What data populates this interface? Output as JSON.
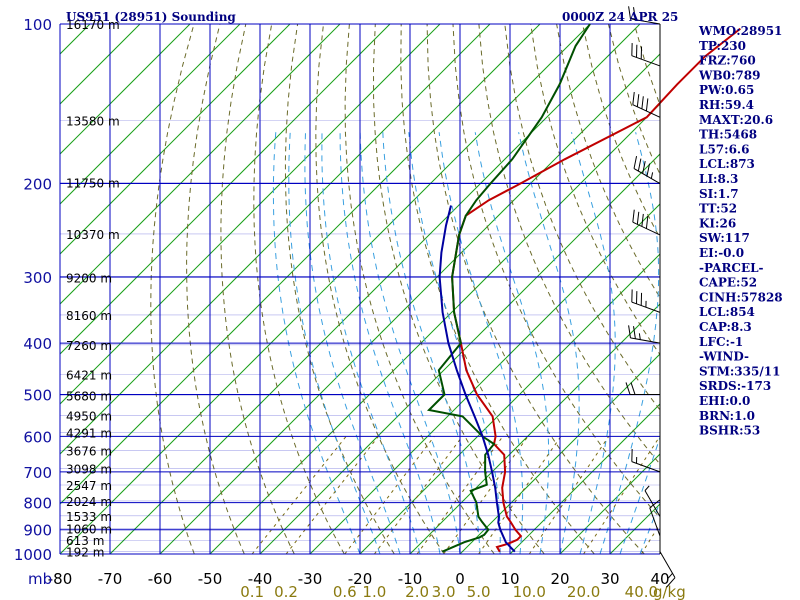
{
  "header": {
    "station": "US951 (28951) Sounding",
    "time": "0000Z 24 APR 25"
  },
  "indices": [
    "WMO:28951",
    "TP:230",
    "FRZ:760",
    "WB0:789",
    "PW:0.65",
    "RH:59.4",
    "MAXT:20.6",
    "TH:5468",
    "L57:6.6",
    "LCL:873",
    "LI:8.3",
    "SI:1.7",
    "TT:52",
    "KI:26",
    "SW:117",
    "EI:-0.0",
    "-PARCEL-",
    "CAPE:52",
    "CINH:57828",
    "LCL:854",
    "CAP:8.3",
    "LFC:-1",
    "-WIND-",
    "STM:335/11",
    "SRDS:-173",
    "EHI:0.0",
    "BRN:1.0",
    "BSHR:53"
  ],
  "chart_data": {
    "type": "line",
    "title": "US951 (28951) Sounding",
    "xlabel": "",
    "ylabel": "mb",
    "x_range": [
      -80,
      0
    ],
    "pressure_range": [
      100,
      1000
    ],
    "log_pressure": true,
    "skew_deg": 45,
    "grid": true,
    "pressure_ticks": [
      100,
      200,
      300,
      400,
      500,
      600,
      700,
      800,
      900,
      1000
    ],
    "pressure_tick_labels": [
      "100",
      "200",
      "300",
      "400",
      "500",
      "600",
      "700",
      "800",
      "900",
      "1000"
    ],
    "temp_ticks": [
      -80,
      -70,
      -60,
      -50,
      -40,
      -30,
      -20,
      -10,
      0,
      10,
      20,
      30,
      40
    ],
    "temp_tick_labels": [
      "-80",
      "-70",
      "-60",
      "-50",
      "-40",
      "-30",
      "-20",
      "-10",
      "0",
      "10",
      "20",
      "30",
      "40"
    ],
    "mixing_ratio_labels": [
      "0.1",
      "0.2",
      "0.6",
      "1.0",
      "2.0",
      "3.0",
      "5.0",
      "10.0",
      "20.0",
      "40.0",
      "g/kg"
    ],
    "mixing_ratio_values": [
      0.1,
      0.2,
      0.6,
      1.0,
      2.0,
      3.0,
      5.0,
      10.0,
      20.0,
      40.0
    ],
    "heights": [
      {
        "p": 990,
        "label": "192 m"
      },
      {
        "p": 942,
        "label": "613 m"
      },
      {
        "p": 895,
        "label": "1060 m"
      },
      {
        "p": 847,
        "label": "1533 m"
      },
      {
        "p": 794,
        "label": "2024 m"
      },
      {
        "p": 741,
        "label": "2547 m"
      },
      {
        "p": 690,
        "label": "3098 m"
      },
      {
        "p": 638,
        "label": "3676 m"
      },
      {
        "p": 590,
        "label": "4291 m"
      },
      {
        "p": 548,
        "label": "4950 m"
      },
      {
        "p": 502,
        "label": "5680 m"
      },
      {
        "p": 458,
        "label": "6421 m"
      },
      {
        "p": 403,
        "label": "7260 m"
      },
      {
        "p": 354,
        "label": "8160 m"
      },
      {
        "p": 301,
        "label": "9200 m"
      },
      {
        "p": 249,
        "label": "10370 m"
      },
      {
        "p": 199,
        "label": "11750 m"
      },
      {
        "p": 152,
        "label": "13580 m"
      },
      {
        "p": 100,
        "label": "16170 m"
      }
    ],
    "series": [
      {
        "name": "",
        "role": "temperature",
        "color": "#c00000",
        "points": [
          [
            990,
            7.5
          ],
          [
            970,
            6
          ],
          [
            960,
            7.2
          ],
          [
            950,
            8.0
          ],
          [
            940,
            8.6
          ],
          [
            925,
            8.6
          ],
          [
            900,
            6.2
          ],
          [
            870,
            3.7
          ],
          [
            850,
            1.9
          ],
          [
            800,
            -1.6
          ],
          [
            750,
            -4.8
          ],
          [
            700,
            -7.4
          ],
          [
            650,
            -11.0
          ],
          [
            620,
            -15.2
          ],
          [
            600,
            -16.4
          ],
          [
            550,
            -21.0
          ],
          [
            500,
            -28.5
          ],
          [
            450,
            -35.5
          ],
          [
            400,
            -42.0
          ],
          [
            350,
            -49.5
          ],
          [
            300,
            -57.0
          ],
          [
            250,
            -64.0
          ],
          [
            230,
            -66.5
          ],
          [
            215,
            -65.0
          ],
          [
            200,
            -62.0
          ],
          [
            180,
            -58.0
          ],
          [
            150,
            -50.0
          ],
          [
            130,
            -50.5
          ],
          [
            115,
            -50.5
          ],
          [
            102,
            -49.0
          ]
        ]
      },
      {
        "name": "",
        "role": "dewpoint",
        "color": "#005000",
        "points": [
          [
            990,
            -4.0
          ],
          [
            950,
            -1.5
          ],
          [
            930,
            0.6
          ],
          [
            920,
            1.0
          ],
          [
            900,
            0.8
          ],
          [
            870,
            -2.0
          ],
          [
            850,
            -3.8
          ],
          [
            800,
            -7.0
          ],
          [
            760,
            -10.5
          ],
          [
            740,
            -8.5
          ],
          [
            700,
            -11.4
          ],
          [
            650,
            -14.8
          ],
          [
            620,
            -15.2
          ],
          [
            600,
            -19.0
          ],
          [
            550,
            -27.0
          ],
          [
            535,
            -35.0
          ],
          [
            500,
            -35.0
          ],
          [
            450,
            -41.0
          ],
          [
            400,
            -42.0
          ],
          [
            350,
            -49.5
          ],
          [
            300,
            -57.0
          ],
          [
            250,
            -64.0
          ],
          [
            230,
            -66.5
          ],
          [
            215,
            -67.5
          ],
          [
            200,
            -68.0
          ],
          [
            180,
            -68.5
          ],
          [
            150,
            -71.0
          ],
          [
            130,
            -74.0
          ],
          [
            110,
            -78.5
          ],
          [
            100,
            -80.0
          ]
        ]
      },
      {
        "name": "",
        "role": "parcel",
        "color": "#0000a0",
        "points": [
          [
            990,
            10.5
          ],
          [
            950,
            6.8
          ],
          [
            900,
            3.2
          ],
          [
            873,
            1.4
          ],
          [
            850,
            0.3
          ],
          [
            800,
            -2.9
          ],
          [
            750,
            -6.2
          ],
          [
            700,
            -10.0
          ],
          [
            650,
            -14.2
          ],
          [
            600,
            -19.0
          ],
          [
            550,
            -24.6
          ],
          [
            500,
            -30.8
          ],
          [
            450,
            -37.4
          ],
          [
            400,
            -44.5
          ],
          [
            350,
            -51.8
          ],
          [
            300,
            -59.5
          ],
          [
            270,
            -64.0
          ],
          [
            240,
            -68.5
          ],
          [
            220,
            -71.5
          ]
        ]
      }
    ],
    "wind_barbs": [
      {
        "p": 990,
        "dir": 150,
        "spd": 15
      },
      {
        "p": 925,
        "dir": 340,
        "spd": 10
      },
      {
        "p": 850,
        "dir": 330,
        "spd": 5
      },
      {
        "p": 700,
        "dir": 290,
        "spd": 15
      },
      {
        "p": 500,
        "dir": 270,
        "spd": 20
      },
      {
        "p": 400,
        "dir": 280,
        "spd": 25
      },
      {
        "p": 350,
        "dir": 290,
        "spd": 35
      },
      {
        "p": 250,
        "dir": 295,
        "spd": 40
      },
      {
        "p": 200,
        "dir": 300,
        "spd": 45
      },
      {
        "p": 150,
        "dir": 295,
        "spd": 40
      },
      {
        "p": 120,
        "dir": 290,
        "spd": 30
      },
      {
        "p": 100,
        "dir": 280,
        "spd": 20
      }
    ]
  }
}
